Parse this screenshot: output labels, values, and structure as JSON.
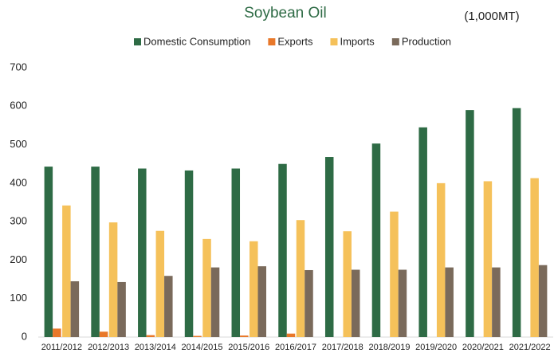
{
  "chart_data": {
    "type": "bar",
    "title": "Soybean Oil",
    "subtitle": "(1,000MT)",
    "categories": [
      "2011/2012",
      "2012/2013",
      "2013/2014",
      "2014/2015",
      "2015/2016",
      "2016/2017",
      "2017/2018",
      "2018/2019",
      "2019/2020",
      "2020/2021",
      "2021/2022"
    ],
    "series": [
      {
        "name": "Domestic Consumption",
        "color": "#2e6b45",
        "values": [
          443,
          443,
          438,
          433,
          438,
          450,
          468,
          503,
          545,
          590,
          595
        ]
      },
      {
        "name": "Exports",
        "color": "#e8782a",
        "values": [
          22,
          14,
          5,
          3,
          4,
          9,
          0,
          0,
          0,
          0,
          0
        ]
      },
      {
        "name": "Imports",
        "color": "#f5c15a",
        "values": [
          342,
          298,
          276,
          255,
          249,
          304,
          275,
          326,
          400,
          405,
          413
        ]
      },
      {
        "name": "Production",
        "color": "#7a6a5b",
        "values": [
          145,
          143,
          159,
          181,
          184,
          174,
          175,
          175,
          181,
          181,
          187
        ]
      }
    ],
    "ylim": [
      0,
      700
    ],
    "yticks": [
      0,
      100,
      200,
      300,
      400,
      500,
      600,
      700
    ],
    "grid": false,
    "legend": "top"
  }
}
